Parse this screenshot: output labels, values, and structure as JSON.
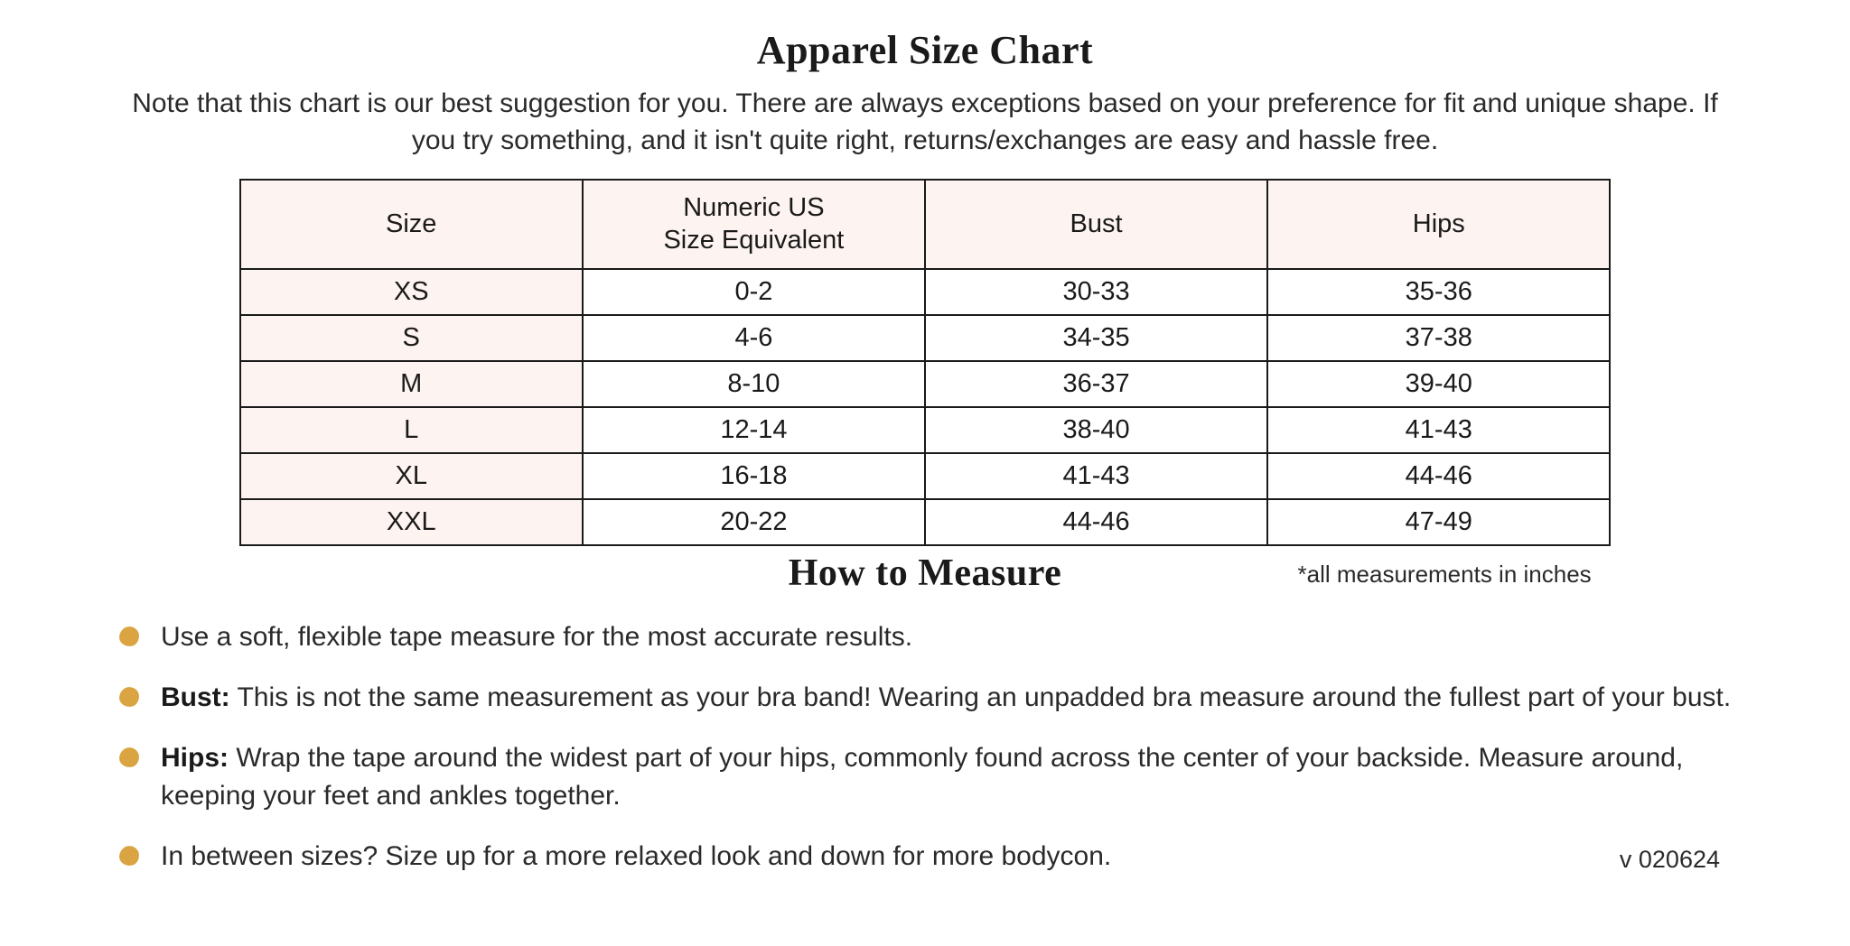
{
  "title": "Apparel Size Chart",
  "intro": "Note that this chart is our best suggestion for you. There are always exceptions based on your preference for fit and unique shape.  If you try something, and it isn't quite right, returns/exchanges are easy and hassle free.",
  "table": {
    "type": "table",
    "header_bg": "#fdf3f0",
    "first_col_bg": "#fdf3f0",
    "border_color": "#1a1a1a",
    "border_width": 2,
    "font_size": 29,
    "columns": [
      "Size",
      "Numeric US\nSize Equivalent",
      "Bust",
      "Hips"
    ],
    "rows": [
      [
        "XS",
        "0-2",
        "30-33",
        "35-36"
      ],
      [
        "S",
        "4-6",
        "34-35",
        "37-38"
      ],
      [
        "M",
        "8-10",
        "36-37",
        "39-40"
      ],
      [
        "L",
        "12-14",
        "38-40",
        "41-43"
      ],
      [
        "XL",
        "16-18",
        "41-43",
        "44-46"
      ],
      [
        "XXL",
        "20-22",
        "44-46",
        "47-49"
      ]
    ]
  },
  "subtitle": "How to Measure",
  "units_note": "*all measurements in inches",
  "bullet_color": "#d9a441",
  "bullets": [
    {
      "bold": "",
      "text": "Use a soft, flexible tape measure for the most accurate results."
    },
    {
      "bold": "Bust:",
      "text": " This is not the same measurement as your bra band! Wearing an unpadded bra measure around the fullest part of your bust."
    },
    {
      "bold": "Hips:",
      "text": " Wrap the tape around the widest part of your hips, commonly found across the center of your backside. Measure around, keeping your feet and ankles together."
    },
    {
      "bold": "",
      "text": "In between sizes? Size up for a more relaxed look and down for more bodycon."
    }
  ],
  "version": "v 020624",
  "colors": {
    "background": "#ffffff",
    "text": "#1a1a1a",
    "body_text": "#2a2a2a"
  },
  "typography": {
    "title_font": "Georgia serif",
    "title_size": 44,
    "subtitle_size": 42,
    "body_size": 30,
    "table_size": 29
  }
}
